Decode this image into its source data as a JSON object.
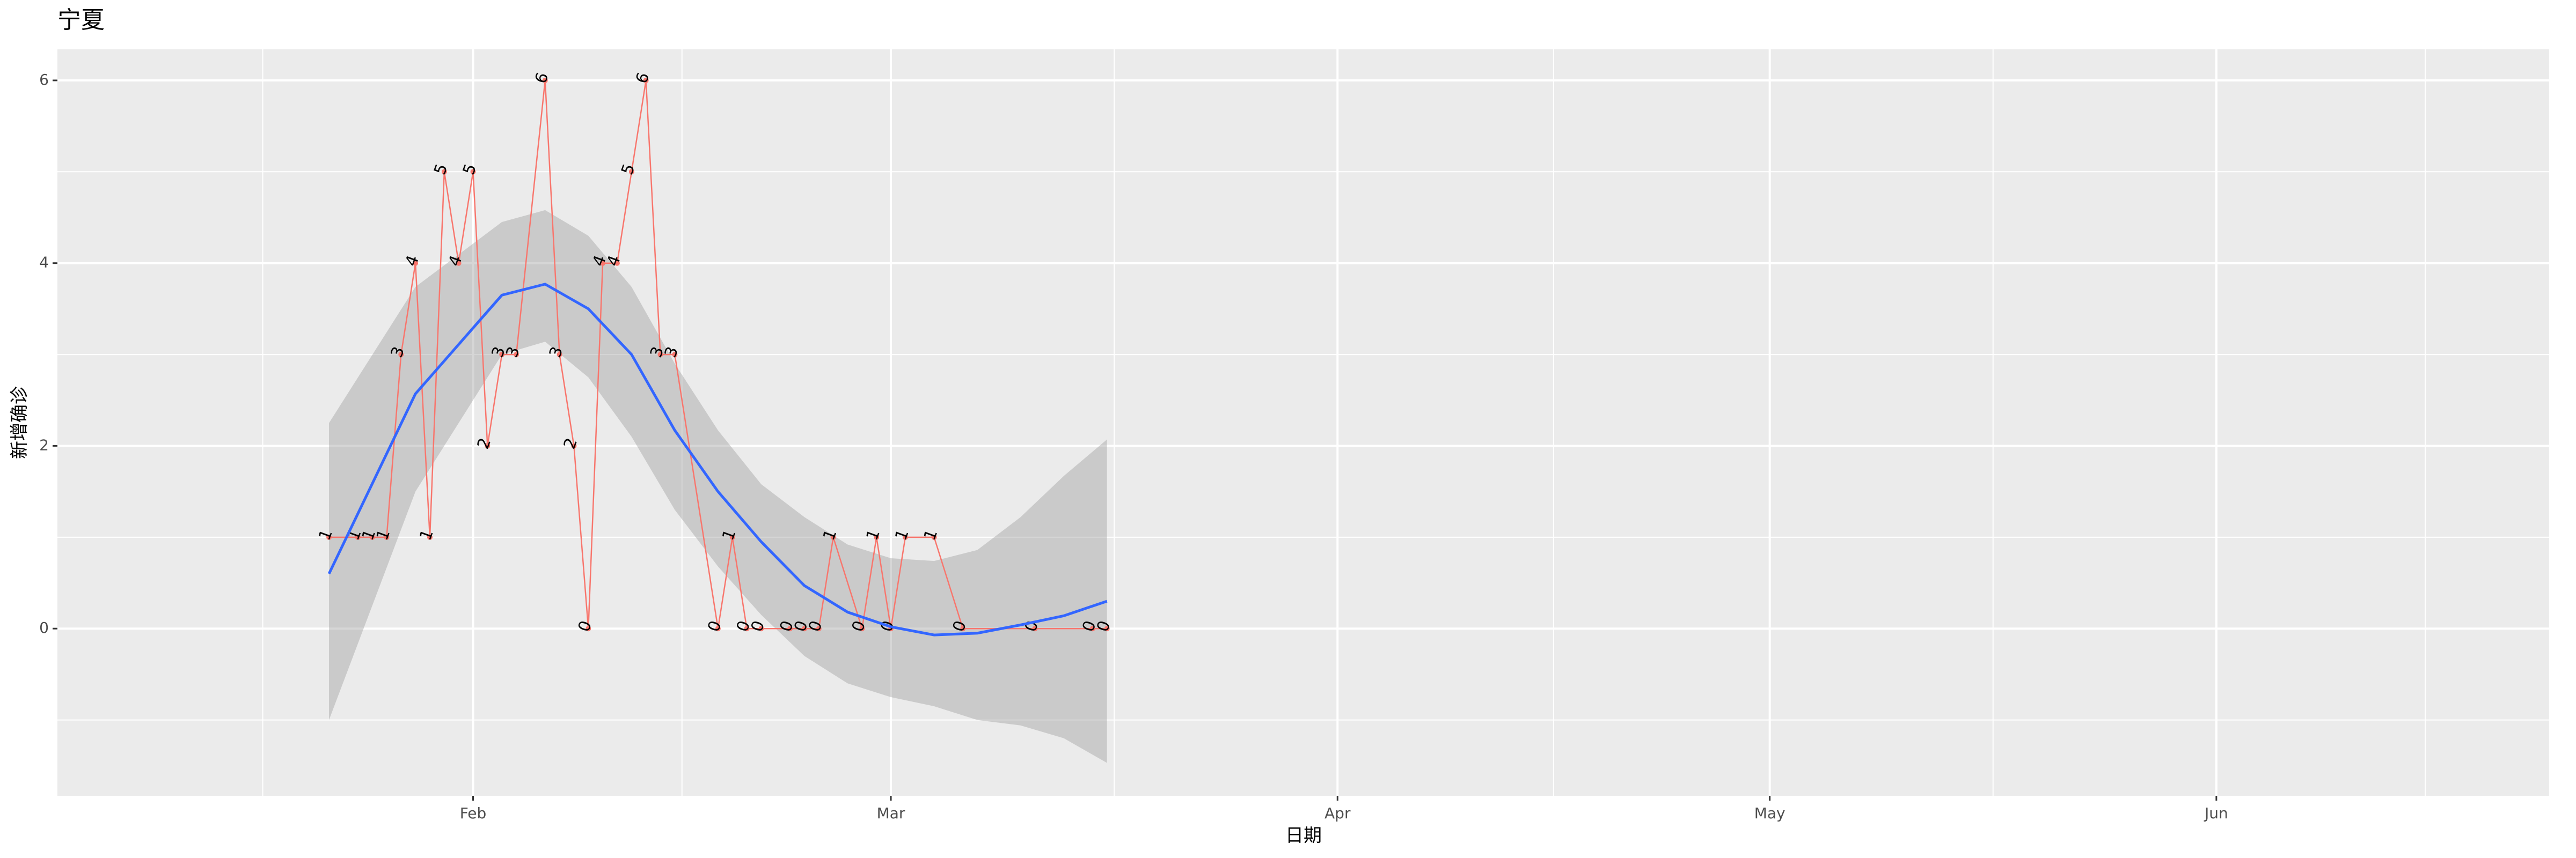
{
  "chart_data": {
    "type": "line",
    "title": "宁夏",
    "x_label": "日期",
    "y_label": "新增确诊",
    "x": [
      22,
      24,
      25,
      26,
      27,
      28,
      29,
      30,
      31,
      32,
      33,
      34,
      35,
      37,
      38,
      39,
      40,
      41,
      42,
      43,
      44,
      45,
      46,
      49,
      50,
      51,
      52,
      54,
      55,
      56,
      57,
      59,
      60,
      61,
      62,
      64,
      66,
      71,
      75,
      76
    ],
    "values": [
      1,
      1,
      1,
      1,
      3,
      4,
      1,
      5,
      4,
      5,
      2,
      3,
      3,
      6,
      3,
      2,
      0,
      4,
      4,
      5,
      6,
      3,
      3,
      0,
      1,
      0,
      0,
      0,
      0,
      0,
      1,
      0,
      1,
      0,
      1,
      1,
      0,
      0,
      0,
      0
    ],
    "color": "#F8766D",
    "smooth": {
      "x": [
        22,
        28,
        34,
        37,
        40,
        43,
        46,
        49,
        52,
        55,
        58,
        61,
        64,
        67,
        70,
        73,
        76
      ],
      "values": [
        0.6,
        2.57,
        3.65,
        3.77,
        3.5,
        3.0,
        2.17,
        1.5,
        0.95,
        0.47,
        0.18,
        0.02,
        -0.07,
        -0.05,
        0.04,
        0.14,
        0.3
      ],
      "lower": [
        -1.0,
        1.5,
        3.0,
        3.14,
        2.75,
        2.1,
        1.3,
        0.68,
        0.15,
        -0.3,
        -0.6,
        -0.75,
        -0.85,
        -1.0,
        -1.06,
        -1.2,
        -1.47
      ],
      "upper": [
        2.25,
        3.74,
        4.45,
        4.58,
        4.3,
        3.74,
        2.9,
        2.17,
        1.58,
        1.22,
        0.92,
        0.77,
        0.74,
        0.86,
        1.22,
        1.67,
        2.07
      ],
      "color": "#3366FF",
      "band_color": "#999999"
    },
    "xlim": [
      3.15,
      176.1
    ],
    "ylim": [
      -1.83,
      6.34
    ],
    "xticks": [
      {
        "value": 32,
        "label": "Feb"
      },
      {
        "value": 61,
        "label": "Mar"
      },
      {
        "value": 92,
        "label": "Apr"
      },
      {
        "value": 122,
        "label": "May"
      },
      {
        "value": 153,
        "label": "Jun"
      }
    ],
    "yticks": [
      0,
      2,
      4,
      6
    ],
    "xminor": [
      17.4,
      46.5,
      76.5,
      107,
      137.5,
      167.5
    ],
    "yminor": [
      -1,
      1,
      3,
      5
    ],
    "grid": true
  }
}
